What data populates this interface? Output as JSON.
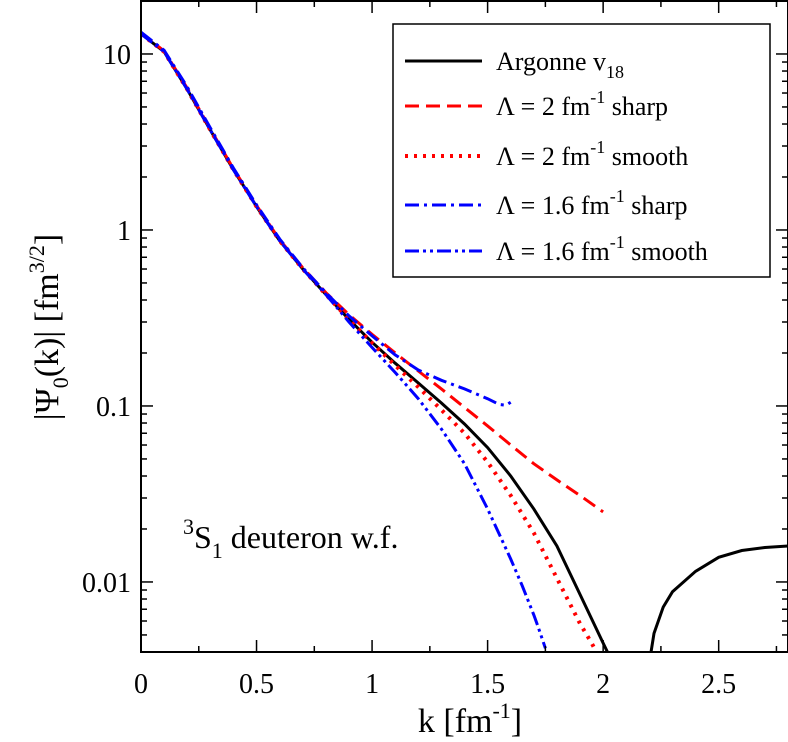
{
  "chart_data": {
    "type": "line",
    "title": "",
    "annotation": {
      "text_sup": "3",
      "text_main": "S",
      "text_sub": "1",
      "text_rest": " deuteron w.f."
    },
    "xlabel": {
      "main": "k [fm",
      "sup": "-1",
      "close": "]"
    },
    "ylabel": {
      "main": "|Ψ",
      "sub": "0",
      "mid": "(k)| [fm",
      "sup": "3/2",
      "close": "]"
    },
    "xlim": [
      0,
      2.8
    ],
    "ylim": [
      0.004,
      20
    ],
    "yscale": "log",
    "x_ticks": [
      {
        "value": 0,
        "label": "0"
      },
      {
        "value": 0.5,
        "label": "0.5"
      },
      {
        "value": 1,
        "label": "1"
      },
      {
        "value": 1.5,
        "label": "1.5"
      },
      {
        "value": 2,
        "label": "2"
      },
      {
        "value": 2.5,
        "label": "2.5"
      }
    ],
    "y_ticks": [
      {
        "value": 10,
        "label": "10"
      },
      {
        "value": 1,
        "label": "1"
      },
      {
        "value": 0.1,
        "label": "0.1"
      },
      {
        "value": 0.01,
        "label": "0.01"
      }
    ],
    "grid": false,
    "legend_position": "top-right",
    "series": [
      {
        "name": "Argonne v",
        "name_sub": "18",
        "color": "#000000",
        "dash": "solid",
        "x": [
          0,
          0.1,
          0.2,
          0.3,
          0.4,
          0.5,
          0.6,
          0.7,
          0.8,
          0.9,
          1.0,
          1.1,
          1.2,
          1.3,
          1.4,
          1.5,
          1.6,
          1.7,
          1.8,
          1.9,
          1.96,
          2.0,
          2.04
        ],
        "y": [
          13.0,
          10.3,
          6.3,
          3.7,
          2.2,
          1.36,
          0.87,
          0.6,
          0.43,
          0.31,
          0.23,
          0.175,
          0.135,
          0.104,
          0.079,
          0.058,
          0.04,
          0.026,
          0.016,
          0.0085,
          0.0058,
          0.0045,
          0.0035
        ]
      },
      {
        "name": "",
        "color": "#000000",
        "dash": "solid",
        "x": [
          2.2,
          2.22,
          2.26,
          2.3,
          2.4,
          2.5,
          2.6,
          2.7,
          2.8
        ],
        "y": [
          0.0035,
          0.0051,
          0.0072,
          0.0088,
          0.0115,
          0.0138,
          0.0151,
          0.0157,
          0.016
        ]
      },
      {
        "name": "Λ = 2 fm",
        "name_sup": "-1",
        "name_rest": " sharp",
        "color": "#ff0000",
        "dash": "dashed",
        "x": [
          0,
          0.1,
          0.2,
          0.3,
          0.4,
          0.5,
          0.6,
          0.7,
          0.8,
          0.9,
          1.0,
          1.1,
          1.2,
          1.3,
          1.4,
          1.5,
          1.6,
          1.7,
          1.8,
          1.9,
          2.0
        ],
        "y": [
          13.2,
          10.4,
          6.4,
          3.75,
          2.23,
          1.38,
          0.88,
          0.61,
          0.44,
          0.33,
          0.255,
          0.2,
          0.158,
          0.125,
          0.098,
          0.077,
          0.06,
          0.047,
          0.038,
          0.031,
          0.025
        ]
      },
      {
        "name": "Λ = 2 fm",
        "name_sup": "-1",
        "name_rest": " smooth",
        "color": "#ff0000",
        "dash": "dotted",
        "x": [
          0,
          0.1,
          0.2,
          0.3,
          0.4,
          0.5,
          0.6,
          0.7,
          0.8,
          0.9,
          1.0,
          1.1,
          1.2,
          1.3,
          1.4,
          1.5,
          1.6,
          1.7,
          1.8,
          1.85,
          1.9,
          1.95,
          1.98
        ],
        "y": [
          13.0,
          10.3,
          6.3,
          3.7,
          2.2,
          1.36,
          0.87,
          0.6,
          0.43,
          0.31,
          0.228,
          0.17,
          0.128,
          0.095,
          0.07,
          0.048,
          0.031,
          0.019,
          0.0105,
          0.0078,
          0.0058,
          0.0045,
          0.0038
        ]
      },
      {
        "name": "Λ = 1.6 fm",
        "name_sup": "-1",
        "name_rest": " sharp",
        "color": "#0000ff",
        "dash": "dashdot",
        "x": [
          0,
          0.1,
          0.2,
          0.3,
          0.4,
          0.5,
          0.6,
          0.7,
          0.8,
          0.9,
          1.0,
          1.1,
          1.2,
          1.3,
          1.4,
          1.5,
          1.55,
          1.58,
          1.6
        ],
        "y": [
          13.3,
          10.5,
          6.5,
          3.8,
          2.25,
          1.39,
          0.89,
          0.61,
          0.44,
          0.325,
          0.25,
          0.195,
          0.16,
          0.14,
          0.125,
          0.11,
          0.102,
          0.101,
          0.105
        ]
      },
      {
        "name": "Λ = 1.6 fm",
        "name_sup": "-1",
        "name_rest": " smooth",
        "color": "#0000ff",
        "dash": "dashdotdot",
        "x": [
          0,
          0.1,
          0.2,
          0.3,
          0.4,
          0.5,
          0.6,
          0.7,
          0.8,
          0.9,
          1.0,
          1.1,
          1.2,
          1.3,
          1.4,
          1.5,
          1.6,
          1.65,
          1.7,
          1.72,
          1.75
        ],
        "y": [
          13.0,
          10.3,
          6.3,
          3.7,
          2.2,
          1.36,
          0.87,
          0.6,
          0.43,
          0.3,
          0.215,
          0.155,
          0.11,
          0.074,
          0.047,
          0.026,
          0.0135,
          0.0095,
          0.0065,
          0.0055,
          0.0042
        ]
      }
    ]
  }
}
